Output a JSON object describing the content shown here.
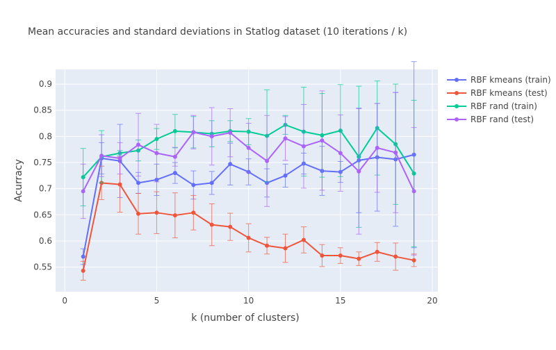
{
  "chart_data": {
    "type": "line",
    "title": "Mean accuracies and standard deviations in Statlog dataset (10 iterations / k)",
    "xlabel": "k (number of clusters)",
    "ylabel": "Acurracy",
    "xlim": [
      -0.5,
      20.3
    ],
    "ylim": [
      0.503,
      0.928
    ],
    "x_ticks": [
      0,
      5,
      10,
      15,
      20
    ],
    "y_ticks": [
      0.55,
      0.6,
      0.65,
      0.7,
      0.75,
      0.8,
      0.85,
      0.9
    ],
    "x_tick_labels": [
      "0",
      "5",
      "10",
      "15",
      "20"
    ],
    "y_tick_labels": [
      "0.55",
      "0.6",
      "0.65",
      "0.7",
      "0.75",
      "0.8",
      "0.85",
      "0.9"
    ],
    "grid": true,
    "legend_position": "right",
    "x": [
      1,
      2,
      3,
      4,
      5,
      6,
      7,
      8,
      9,
      10,
      11,
      12,
      13,
      14,
      15,
      16,
      17,
      18,
      19
    ],
    "series": [
      {
        "name": "RBF kmeans (train)",
        "color": "#636efa",
        "values": [
          0.57,
          0.758,
          0.753,
          0.711,
          0.717,
          0.73,
          0.707,
          0.711,
          0.747,
          0.732,
          0.711,
          0.725,
          0.748,
          0.734,
          0.732,
          0.754,
          0.76,
          0.756,
          0.765
        ],
        "error": [
          0.015,
          0.03,
          0.07,
          0.02,
          0.03,
          0.02,
          0.027,
          0.022,
          0.04,
          0.025,
          0.027,
          0.022,
          0.02,
          0.047,
          0.02,
          0.1,
          0.103,
          0.128,
          0.178
        ]
      },
      {
        "name": "RBF kmeans (test)",
        "color": "#ef553b",
        "values": [
          0.543,
          0.711,
          0.708,
          0.652,
          0.654,
          0.649,
          0.654,
          0.631,
          0.627,
          0.606,
          0.591,
          0.586,
          0.602,
          0.572,
          0.572,
          0.566,
          0.579,
          0.57,
          0.563
        ],
        "error": [
          0.018,
          0.032,
          0.053,
          0.039,
          0.04,
          0.043,
          0.033,
          0.04,
          0.026,
          0.027,
          0.016,
          0.027,
          0.025,
          0.021,
          0.015,
          0.013,
          0.018,
          0.026,
          0.012
        ]
      },
      {
        "name": "RBF rand (train)",
        "color": "#00cc96",
        "values": [
          0.722,
          0.761,
          0.768,
          0.773,
          0.795,
          0.81,
          0.808,
          0.805,
          0.81,
          0.809,
          0.801,
          0.822,
          0.809,
          0.802,
          0.811,
          0.761,
          0.816,
          0.785,
          0.729
        ],
        "error": [
          0.055,
          0.05,
          0.005,
          0.02,
          0.02,
          0.032,
          0.03,
          0.025,
          0.02,
          0.025,
          0.088,
          0.018,
          0.085,
          0.08,
          0.088,
          0.135,
          0.09,
          0.115,
          0.14
        ]
      },
      {
        "name": "RBF rand (test)",
        "color": "#ab63fa",
        "values": [
          0.695,
          0.763,
          0.758,
          0.784,
          0.768,
          0.761,
          0.808,
          0.8,
          0.807,
          0.778,
          0.753,
          0.796,
          0.781,
          0.792,
          0.768,
          0.733,
          0.778,
          0.769,
          0.695
        ],
        "error": [
          0.052,
          0.04,
          0.03,
          0.06,
          0.055,
          0.018,
          0.032,
          0.055,
          0.046,
          0.047,
          0.087,
          0.042,
          0.08,
          0.095,
          0.073,
          0.12,
          0.085,
          0.115,
          0.122
        ]
      }
    ]
  }
}
